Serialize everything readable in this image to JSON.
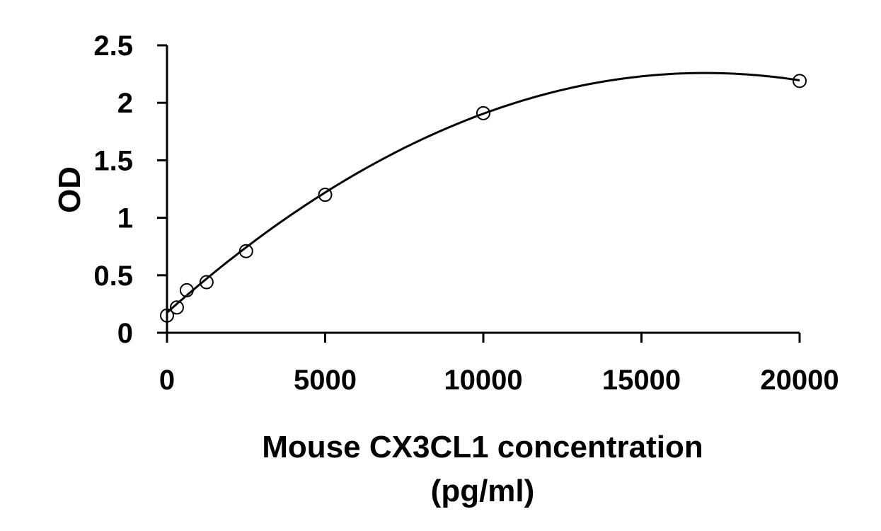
{
  "chart_data": {
    "type": "scatter",
    "xlabel": "Mouse CX3CL1 concentration",
    "xlabel_line2": "(pg/ml)",
    "ylabel": "OD",
    "xlim": [
      0,
      20000
    ],
    "ylim": [
      0,
      2.5
    ],
    "x_ticks": [
      0,
      5000,
      10000,
      15000,
      20000
    ],
    "x_tick_labels": [
      "0",
      "5000",
      "10000",
      "15000",
      "20000"
    ],
    "y_ticks": [
      0,
      0.5,
      1,
      1.5,
      2,
      2.5
    ],
    "y_tick_labels": [
      "0",
      "0.5",
      "1",
      "1.5",
      "2",
      "2.5"
    ],
    "grid": false,
    "legend": "none",
    "series": [
      {
        "marker": "open-circle",
        "x": [
          0,
          312.5,
          625,
          1250,
          2500,
          5000,
          10000,
          20000
        ],
        "y": [
          0.15,
          0.22,
          0.37,
          0.44,
          0.71,
          1.2,
          1.91,
          2.19
        ]
      }
    ],
    "fit": {
      "kind": "polynomial-trendline",
      "x_range": [
        0,
        20000
      ],
      "coefficients": [
        0.175,
        0.000245,
        -7.2e-09
      ]
    }
  }
}
